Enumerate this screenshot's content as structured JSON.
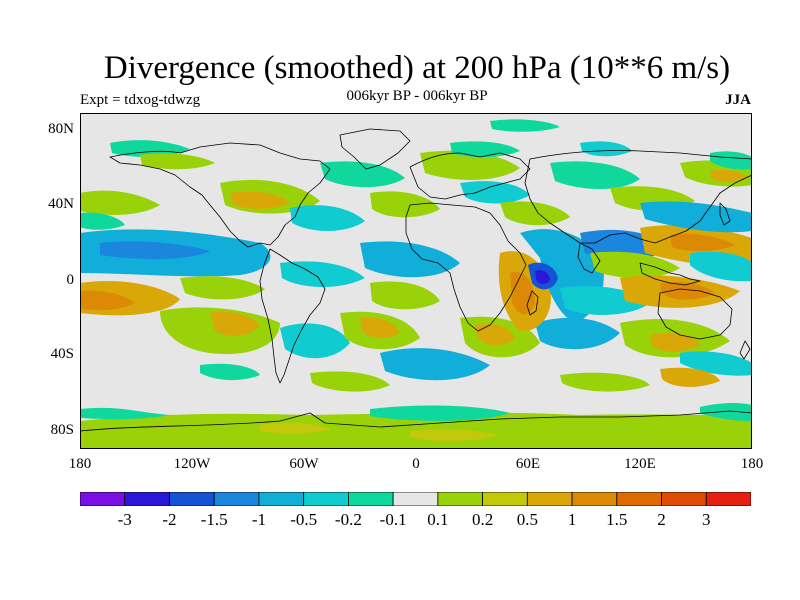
{
  "header": {
    "title": "Divergence (smoothed) at 200 hPa (10**6 m/s)",
    "subtitle": "006kyr BP - 006kyr BP",
    "experiment": "Expt = tdxog-tdwzg",
    "season": "JJA"
  },
  "axes": {
    "y_ticks": [
      "80N",
      "40N",
      "0",
      "40S",
      "80S"
    ],
    "x_ticks": [
      "180",
      "120W",
      "60W",
      "0",
      "60E",
      "120E",
      "180"
    ]
  },
  "colorbar": {
    "colors": [
      "#7B10E6",
      "#2A17D8",
      "#1553D6",
      "#1A86DE",
      "#10AED8",
      "#10CCD0",
      "#10D89C",
      "#E6E6E6",
      "#9AD20A",
      "#C4C80A",
      "#D9A808",
      "#DC8A05",
      "#DE6A04",
      "#E04A02",
      "#E62010"
    ],
    "labels": [
      "-3",
      "-2",
      "-1.5",
      "-1",
      "-0.5",
      "-0.2",
      "-0.1",
      "0.1",
      "0.2",
      "0.5",
      "1",
      "1.5",
      "2",
      "3"
    ]
  },
  "map_colors": {
    "background": "#E6E6E6",
    "coast": "#000000"
  }
}
